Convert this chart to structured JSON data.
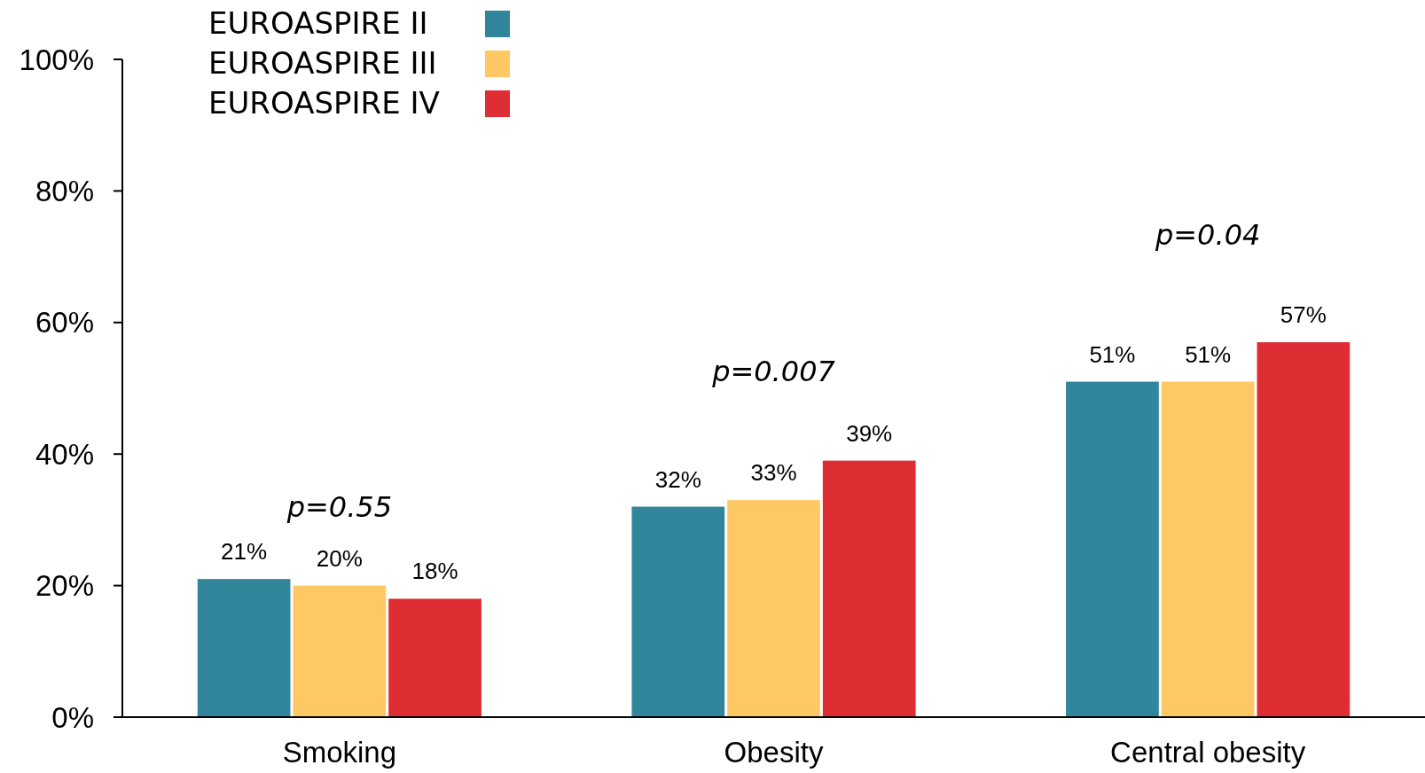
{
  "chart_data": {
    "type": "bar",
    "categories": [
      "Smoking",
      "Obesity",
      "Central obesity"
    ],
    "series": [
      {
        "name": "EUROASPIRE II",
        "color": "#31869b",
        "values": [
          21,
          32,
          51
        ],
        "value_labels": [
          "21%",
          "32%",
          "51%"
        ]
      },
      {
        "name": "EUROASPIRE III",
        "color": "#fec965",
        "values": [
          20,
          33,
          51
        ],
        "value_labels": [
          "20%",
          "33%",
          "51%"
        ]
      },
      {
        "name": "EUROASPIRE IV",
        "color": "#de2d33",
        "values": [
          18,
          39,
          57
        ],
        "value_labels": [
          "18%",
          "39%",
          "57%"
        ]
      }
    ],
    "ylim": [
      0,
      100
    ],
    "yticks": [
      {
        "value": 0,
        "label": "0%"
      },
      {
        "value": 20,
        "label": "20%"
      },
      {
        "value": 40,
        "label": "40%"
      },
      {
        "value": 60,
        "label": "60%"
      },
      {
        "value": 80,
        "label": "80%"
      },
      {
        "value": 100,
        "label": "100%"
      }
    ],
    "annotations": [
      "p=0.55",
      "p=0.007",
      "p=0.04"
    ],
    "legend": "top left",
    "grid": false
  }
}
